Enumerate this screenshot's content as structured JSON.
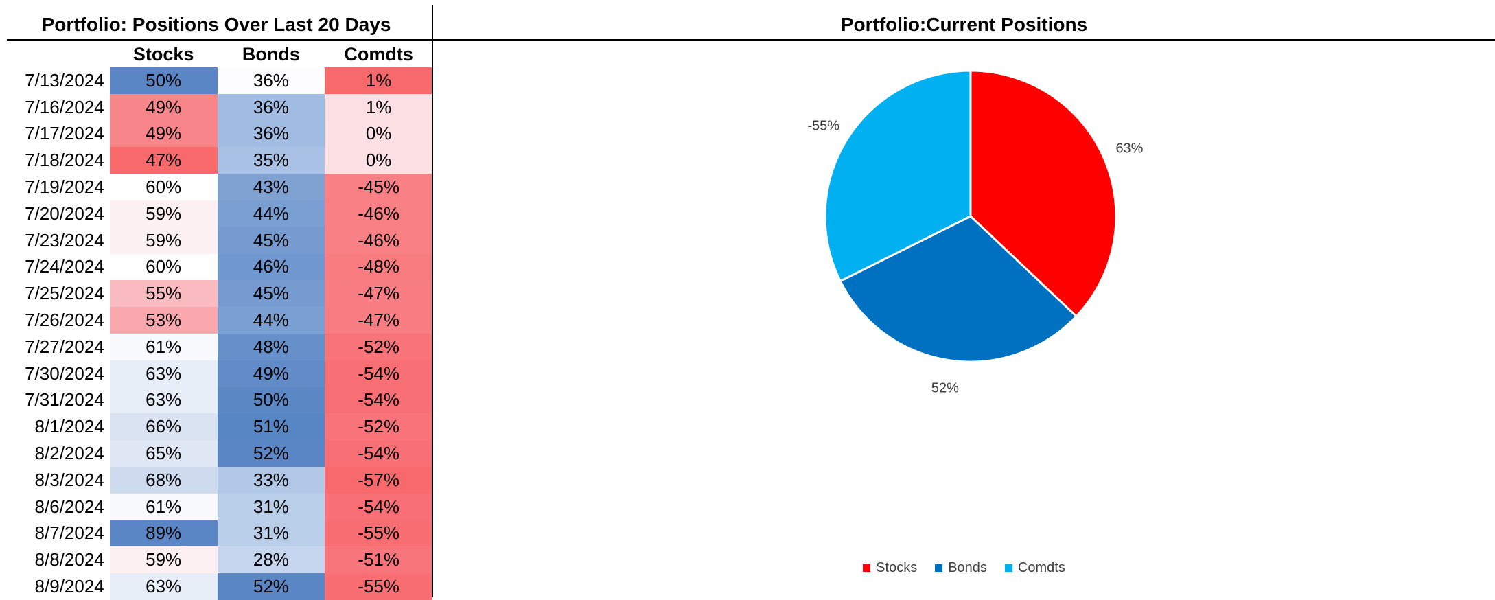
{
  "left_title": "Portfolio: Positions Over Last 20 Days",
  "right_title": "Portfolio:Current Positions",
  "table": {
    "columns": [
      "Stocks",
      "Bonds",
      "Comdts"
    ],
    "rows": [
      {
        "date": "7/13/2024",
        "values": [
          "50%",
          "36%",
          "1%"
        ],
        "colors": [
          "#5b86c5",
          "#fdfdff",
          "#f8696b"
        ]
      },
      {
        "date": "7/16/2024",
        "values": [
          "49%",
          "36%",
          "1%"
        ],
        "colors": [
          "#f8858a",
          "#a1bce2",
          "#fcdfe3"
        ]
      },
      {
        "date": "7/17/2024",
        "values": [
          "49%",
          "36%",
          "0%"
        ],
        "colors": [
          "#f8858a",
          "#a1bce2",
          "#fce0e4"
        ]
      },
      {
        "date": "7/18/2024",
        "values": [
          "47%",
          "35%",
          "0%"
        ],
        "colors": [
          "#f8696b",
          "#a8c1e4",
          "#fce0e4"
        ]
      },
      {
        "date": "7/19/2024",
        "values": [
          "60%",
          "43%",
          "-45%"
        ],
        "colors": [
          "#fefeff",
          "#7fa2d3",
          "#f98186"
        ]
      },
      {
        "date": "7/20/2024",
        "values": [
          "59%",
          "44%",
          "-46%"
        ],
        "colors": [
          "#fcf0f3",
          "#7a9fd2",
          "#f98085"
        ]
      },
      {
        "date": "7/23/2024",
        "values": [
          "59%",
          "45%",
          "-46%"
        ],
        "colors": [
          "#fcf0f3",
          "#759bd0",
          "#f98085"
        ]
      },
      {
        "date": "7/24/2024",
        "values": [
          "60%",
          "46%",
          "-48%"
        ],
        "colors": [
          "#fefeff",
          "#7098ce",
          "#f97c81"
        ]
      },
      {
        "date": "7/25/2024",
        "values": [
          "55%",
          "45%",
          "-47%"
        ],
        "colors": [
          "#fbbcc1",
          "#759bd0",
          "#f97e83"
        ]
      },
      {
        "date": "7/26/2024",
        "values": [
          "53%",
          "44%",
          "-47%"
        ],
        "colors": [
          "#faa8ad",
          "#7a9fd2",
          "#f97e83"
        ]
      },
      {
        "date": "7/27/2024",
        "values": [
          "61%",
          "48%",
          "-52%"
        ],
        "colors": [
          "#f8f9fd",
          "#6690c9",
          "#f87479"
        ]
      },
      {
        "date": "7/30/2024",
        "values": [
          "63%",
          "49%",
          "-54%"
        ],
        "colors": [
          "#e8eef8",
          "#618cc8",
          "#f87075"
        ]
      },
      {
        "date": "7/31/2024",
        "values": [
          "63%",
          "50%",
          "-54%"
        ],
        "colors": [
          "#e8eef8",
          "#5c89c6",
          "#f87075"
        ]
      },
      {
        "date": "8/1/2024",
        "values": [
          "66%",
          "51%",
          "-52%"
        ],
        "colors": [
          "#d9e3f2",
          "#5786c4",
          "#f87479"
        ]
      },
      {
        "date": "8/2/2024",
        "values": [
          "65%",
          "52%",
          "-54%"
        ],
        "colors": [
          "#dfe7f4",
          "#5b86c5",
          "#f87075"
        ]
      },
      {
        "date": "8/3/2024",
        "values": [
          "68%",
          "33%",
          "-57%"
        ],
        "colors": [
          "#cfdcef",
          "#b1c8e7",
          "#f8696b"
        ]
      },
      {
        "date": "8/6/2024",
        "values": [
          "61%",
          "31%",
          "-54%"
        ],
        "colors": [
          "#f8f9fd",
          "#b9cee9",
          "#f87075"
        ]
      },
      {
        "date": "8/7/2024",
        "values": [
          "89%",
          "31%",
          "-55%"
        ],
        "colors": [
          "#5b86c5",
          "#b9cee9",
          "#f86e73"
        ]
      },
      {
        "date": "8/8/2024",
        "values": [
          "59%",
          "28%",
          "-51%"
        ],
        "colors": [
          "#fcf0f3",
          "#c6d6ee",
          "#f8767b"
        ]
      },
      {
        "date": "8/9/2024",
        "values": [
          "63%",
          "52%",
          "-55%"
        ],
        "colors": [
          "#e8eef8",
          "#5b86c5",
          "#f86e73"
        ]
      }
    ]
  },
  "chart_data": {
    "type": "pie",
    "title": "Portfolio:Current Positions",
    "categories": [
      "Stocks",
      "Bonds",
      "Comdts"
    ],
    "values": [
      63,
      52,
      -55
    ],
    "labels": [
      "63%",
      "52%",
      "-55%"
    ],
    "colors": [
      "#ff0000",
      "#0070c0",
      "#00b0f0"
    ],
    "legend": "bottom"
  }
}
